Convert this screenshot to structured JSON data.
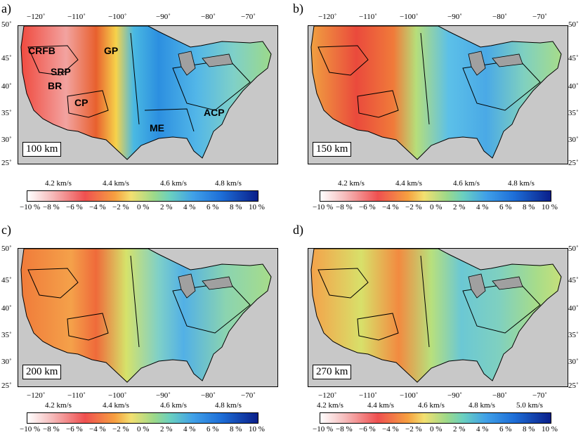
{
  "panels": [
    {
      "letter": "a)",
      "depth": "100 km",
      "regions": [
        {
          "label": "CRFB"
        },
        {
          "label": "SRP"
        },
        {
          "label": "BR"
        },
        {
          "label": "CP"
        },
        {
          "label": "GP"
        },
        {
          "label": "ME"
        },
        {
          "label": "ACP"
        }
      ]
    },
    {
      "letter": "b)",
      "depth": "150 km",
      "regions": []
    },
    {
      "letter": "c)",
      "depth": "200 km",
      "regions": []
    },
    {
      "letter": "d)",
      "depth": "270 km",
      "regions": []
    }
  ],
  "lon_ticks": [
    "−120˚",
    "−110˚",
    "−100˚",
    "−90˚",
    "−80˚",
    "−70˚"
  ],
  "lat_ticks": [
    "50˚",
    "45˚",
    "40˚",
    "35˚",
    "30˚",
    "25˚"
  ],
  "colorbars": [
    {
      "velocity": [
        "4.2 km/s",
        "4.4 km/s",
        "4.6 km/s",
        "4.8 km/s"
      ],
      "percent": [
        "−10 %",
        "−8 %",
        "−6 %",
        "−4 %",
        "−2 %",
        "0 %",
        "2 %",
        "4 %",
        "6 %",
        "8 %",
        "10 %"
      ]
    },
    {
      "velocity": [
        "4.2 km/s",
        "4.4 km/s",
        "4.6 km/s",
        "4.8 km/s"
      ],
      "percent": [
        "−10 %",
        "−8 %",
        "−6 %",
        "−4 %",
        "−2 %",
        "0 %",
        "2 %",
        "4 %",
        "6 %",
        "8 %",
        "10 %"
      ]
    },
    {
      "velocity": [
        "4.2 km/s",
        "4.4 km/s",
        "4.6 km/s",
        "4.8 km/s"
      ],
      "percent": [
        "−10 %",
        "−8 %",
        "−6 %",
        "−4 %",
        "−2 %",
        "0 %",
        "2 %",
        "4 %",
        "6 %",
        "8 %",
        "10 %"
      ]
    },
    {
      "velocity": [
        "4.2 km/s",
        "4.4 km/s",
        "4.6 km/s",
        "4.8 km/s",
        "5.0 km/s"
      ],
      "percent": [
        "−10 %",
        "−8 %",
        "−6 %",
        "−4 %",
        "−2 %",
        "0 %",
        "2 %",
        "4 %",
        "6 %",
        "8 %",
        "10 %"
      ]
    }
  ],
  "colors": {
    "land_gray": "#c8c8c8",
    "slow_red": "#e8403a",
    "neutral_green": "#9cd98a",
    "fast_blue": "#1e6fd8",
    "deep_blue": "#0a1f8a",
    "water_gray": "#a0a0a0"
  }
}
